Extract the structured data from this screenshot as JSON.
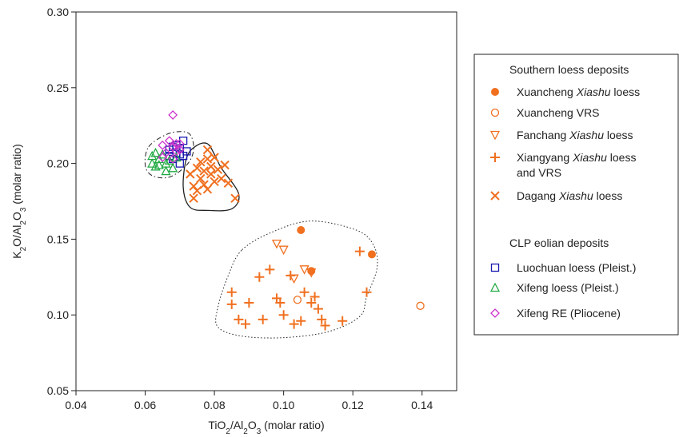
{
  "chart_data": {
    "type": "scatter",
    "xlabel": {
      "pre": "TiO",
      "sub1": "2",
      "mid": "/Al",
      "sub2": "2",
      "mid2": "O",
      "sub3": "3",
      "post": " (molar ratio)"
    },
    "ylabel": {
      "pre": "K",
      "sub1": "2",
      "mid": "O/Al",
      "sub2": "2",
      "mid2": "O",
      "sub3": "3",
      "post": " (molar ratio)"
    },
    "xlim": [
      0.04,
      0.15
    ],
    "ylim": [
      0.05,
      0.3
    ],
    "xticks": [
      "0.04",
      "0.06",
      "0.08",
      "0.10",
      "0.12",
      "0.14"
    ],
    "yticks": [
      "0.05",
      "0.10",
      "0.15",
      "0.20",
      "0.25",
      "0.30"
    ],
    "legend_position": "right",
    "legend_groups": [
      {
        "title": "Southern loess deposits"
      },
      {
        "title": "CLP eolian deposits"
      }
    ],
    "series": [
      {
        "name_parts": [
          [
            "Xuancheng ",
            false
          ],
          [
            "Xiashu",
            true
          ],
          [
            " loess",
            false
          ]
        ],
        "marker": "filled-circle",
        "color": "#f07020",
        "group": 0,
        "points": [
          [
            0.105,
            0.156
          ],
          [
            0.108,
            0.129
          ],
          [
            0.1255,
            0.14
          ]
        ]
      },
      {
        "name_parts": [
          [
            "Xuancheng VRS",
            false
          ]
        ],
        "marker": "open-circle",
        "color": "#f07020",
        "group": 0,
        "points": [
          [
            0.104,
            0.11
          ],
          [
            0.1395,
            0.106
          ]
        ]
      },
      {
        "name_parts": [
          [
            "Fanchang ",
            false
          ],
          [
            "Xiashu",
            true
          ],
          [
            " loess",
            false
          ]
        ],
        "marker": "open-triangle-down",
        "color": "#f07020",
        "group": 0,
        "points": [
          [
            0.098,
            0.147
          ],
          [
            0.1,
            0.143
          ],
          [
            0.103,
            0.124
          ],
          [
            0.106,
            0.13
          ],
          [
            0.108,
            0.128
          ]
        ]
      },
      {
        "name_parts": [
          [
            "Xiangyang ",
            false
          ],
          [
            "Xiashu",
            true
          ],
          [
            " loess",
            false
          ]
        ],
        "name_line2": "and VRS",
        "marker": "plus",
        "color": "#f07020",
        "group": 0,
        "points": [
          [
            0.085,
            0.115
          ],
          [
            0.085,
            0.107
          ],
          [
            0.087,
            0.097
          ],
          [
            0.089,
            0.094
          ],
          [
            0.09,
            0.108
          ],
          [
            0.093,
            0.125
          ],
          [
            0.094,
            0.097
          ],
          [
            0.096,
            0.13
          ],
          [
            0.098,
            0.111
          ],
          [
            0.099,
            0.108
          ],
          [
            0.1,
            0.1
          ],
          [
            0.102,
            0.126
          ],
          [
            0.103,
            0.094
          ],
          [
            0.105,
            0.096
          ],
          [
            0.106,
            0.115
          ],
          [
            0.108,
            0.108
          ],
          [
            0.109,
            0.112
          ],
          [
            0.11,
            0.104
          ],
          [
            0.111,
            0.097
          ],
          [
            0.112,
            0.093
          ],
          [
            0.117,
            0.096
          ],
          [
            0.122,
            0.142
          ],
          [
            0.124,
            0.115
          ]
        ]
      },
      {
        "name_parts": [
          [
            "Dagang  ",
            false
          ],
          [
            "Xiashu",
            true
          ],
          [
            " loess",
            false
          ]
        ],
        "marker": "x",
        "color": "#f07020",
        "group": 0,
        "points": [
          [
            0.073,
            0.193
          ],
          [
            0.074,
            0.185
          ],
          [
            0.074,
            0.177
          ],
          [
            0.075,
            0.197
          ],
          [
            0.075,
            0.182
          ],
          [
            0.076,
            0.19
          ],
          [
            0.076,
            0.201
          ],
          [
            0.077,
            0.195
          ],
          [
            0.077,
            0.186
          ],
          [
            0.078,
            0.209
          ],
          [
            0.078,
            0.203
          ],
          [
            0.078,
            0.183
          ],
          [
            0.079,
            0.198
          ],
          [
            0.079,
            0.193
          ],
          [
            0.08,
            0.188
          ],
          [
            0.08,
            0.204
          ],
          [
            0.081,
            0.196
          ],
          [
            0.082,
            0.19
          ],
          [
            0.083,
            0.199
          ],
          [
            0.084,
            0.187
          ],
          [
            0.086,
            0.177
          ]
        ]
      },
      {
        "name_parts": [
          [
            "Luochuan loess (Pleist.)",
            false
          ]
        ],
        "marker": "open-square",
        "color": "#1a1ab0",
        "group": 1,
        "points": [
          [
            0.067,
            0.205
          ],
          [
            0.067,
            0.209
          ],
          [
            0.068,
            0.203
          ],
          [
            0.068,
            0.211
          ],
          [
            0.069,
            0.207
          ],
          [
            0.069,
            0.212
          ],
          [
            0.07,
            0.2
          ],
          [
            0.07,
            0.206
          ],
          [
            0.07,
            0.21
          ],
          [
            0.071,
            0.215
          ],
          [
            0.071,
            0.205
          ],
          [
            0.072,
            0.208
          ]
        ]
      },
      {
        "name_parts": [
          [
            "Xifeng loess (Pleist.)",
            false
          ]
        ],
        "marker": "open-triangle-up",
        "color": "#22aa44",
        "group": 1,
        "points": [
          [
            0.062,
            0.205
          ],
          [
            0.062,
            0.2
          ],
          [
            0.063,
            0.207
          ],
          [
            0.063,
            0.198
          ],
          [
            0.064,
            0.203
          ],
          [
            0.064,
            0.199
          ],
          [
            0.065,
            0.206
          ],
          [
            0.066,
            0.195
          ],
          [
            0.066,
            0.2
          ],
          [
            0.067,
            0.202
          ],
          [
            0.068,
            0.197
          ],
          [
            0.069,
            0.204
          ]
        ]
      },
      {
        "name_parts": [
          [
            "Xifeng RE (Pliocene)",
            false
          ]
        ],
        "marker": "open-diamond",
        "color": "#cc33cc",
        "group": 1,
        "points": [
          [
            0.068,
            0.232
          ],
          [
            0.065,
            0.212
          ],
          [
            0.066,
            0.207
          ],
          [
            0.067,
            0.215
          ],
          [
            0.068,
            0.211
          ],
          [
            0.069,
            0.208
          ],
          [
            0.069,
            0.213
          ],
          [
            0.07,
            0.213
          ],
          [
            0.07,
            0.209
          ],
          [
            0.065,
            0.204
          ],
          [
            0.068,
            0.203
          ]
        ]
      }
    ],
    "outlines": [
      {
        "style": "dotted",
        "points": [
          [
            0.088,
            0.143
          ],
          [
            0.097,
            0.155
          ],
          [
            0.108,
            0.162
          ],
          [
            0.121,
            0.156
          ],
          [
            0.126,
            0.146
          ],
          [
            0.127,
            0.131
          ],
          [
            0.124,
            0.112
          ],
          [
            0.122,
            0.099
          ],
          [
            0.113,
            0.089
          ],
          [
            0.1,
            0.085
          ],
          [
            0.088,
            0.086
          ],
          [
            0.081,
            0.092
          ],
          [
            0.081,
            0.105
          ],
          [
            0.084,
            0.126
          ]
        ]
      },
      {
        "style": "solid",
        "points": [
          [
            0.072,
            0.204
          ],
          [
            0.075,
            0.212
          ],
          [
            0.078,
            0.213
          ],
          [
            0.08,
            0.206
          ],
          [
            0.082,
            0.197
          ],
          [
            0.087,
            0.18
          ],
          [
            0.085,
            0.17
          ],
          [
            0.078,
            0.169
          ],
          [
            0.073,
            0.171
          ],
          [
            0.071,
            0.184
          ]
        ]
      },
      {
        "style": "dashdot",
        "points": [
          [
            0.061,
            0.211
          ],
          [
            0.066,
            0.219
          ],
          [
            0.07,
            0.221
          ],
          [
            0.073,
            0.219
          ],
          [
            0.074,
            0.209
          ],
          [
            0.072,
            0.199
          ],
          [
            0.067,
            0.191
          ],
          [
            0.062,
            0.192
          ],
          [
            0.06,
            0.199
          ]
        ]
      }
    ]
  }
}
